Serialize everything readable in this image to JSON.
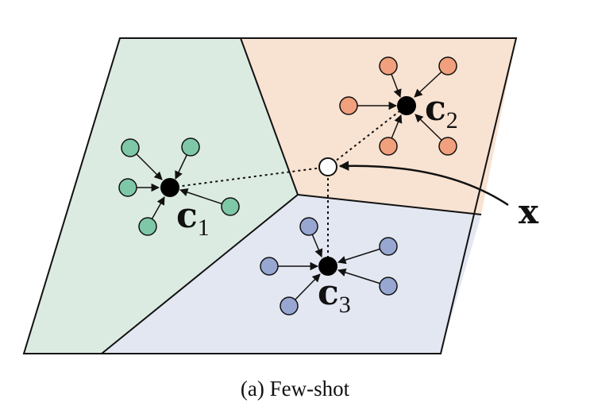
{
  "colors": {
    "region_green": "#dcebe2",
    "region_peach": "#f8e2d1",
    "region_blue": "#e3e7f1",
    "point_green": "#7ec8a7",
    "point_orange": "#f0a07c",
    "point_blue": "#97a7d1",
    "outline": "#111111",
    "prototype": "#000000",
    "query": "#ffffff"
  },
  "labels": {
    "c1": {
      "main": "c",
      "sub": "1"
    },
    "c2": {
      "main": "c",
      "sub": "2"
    },
    "c3": {
      "main": "c",
      "sub": "3"
    },
    "x": "x"
  },
  "caption": "(a) Few-shot"
}
